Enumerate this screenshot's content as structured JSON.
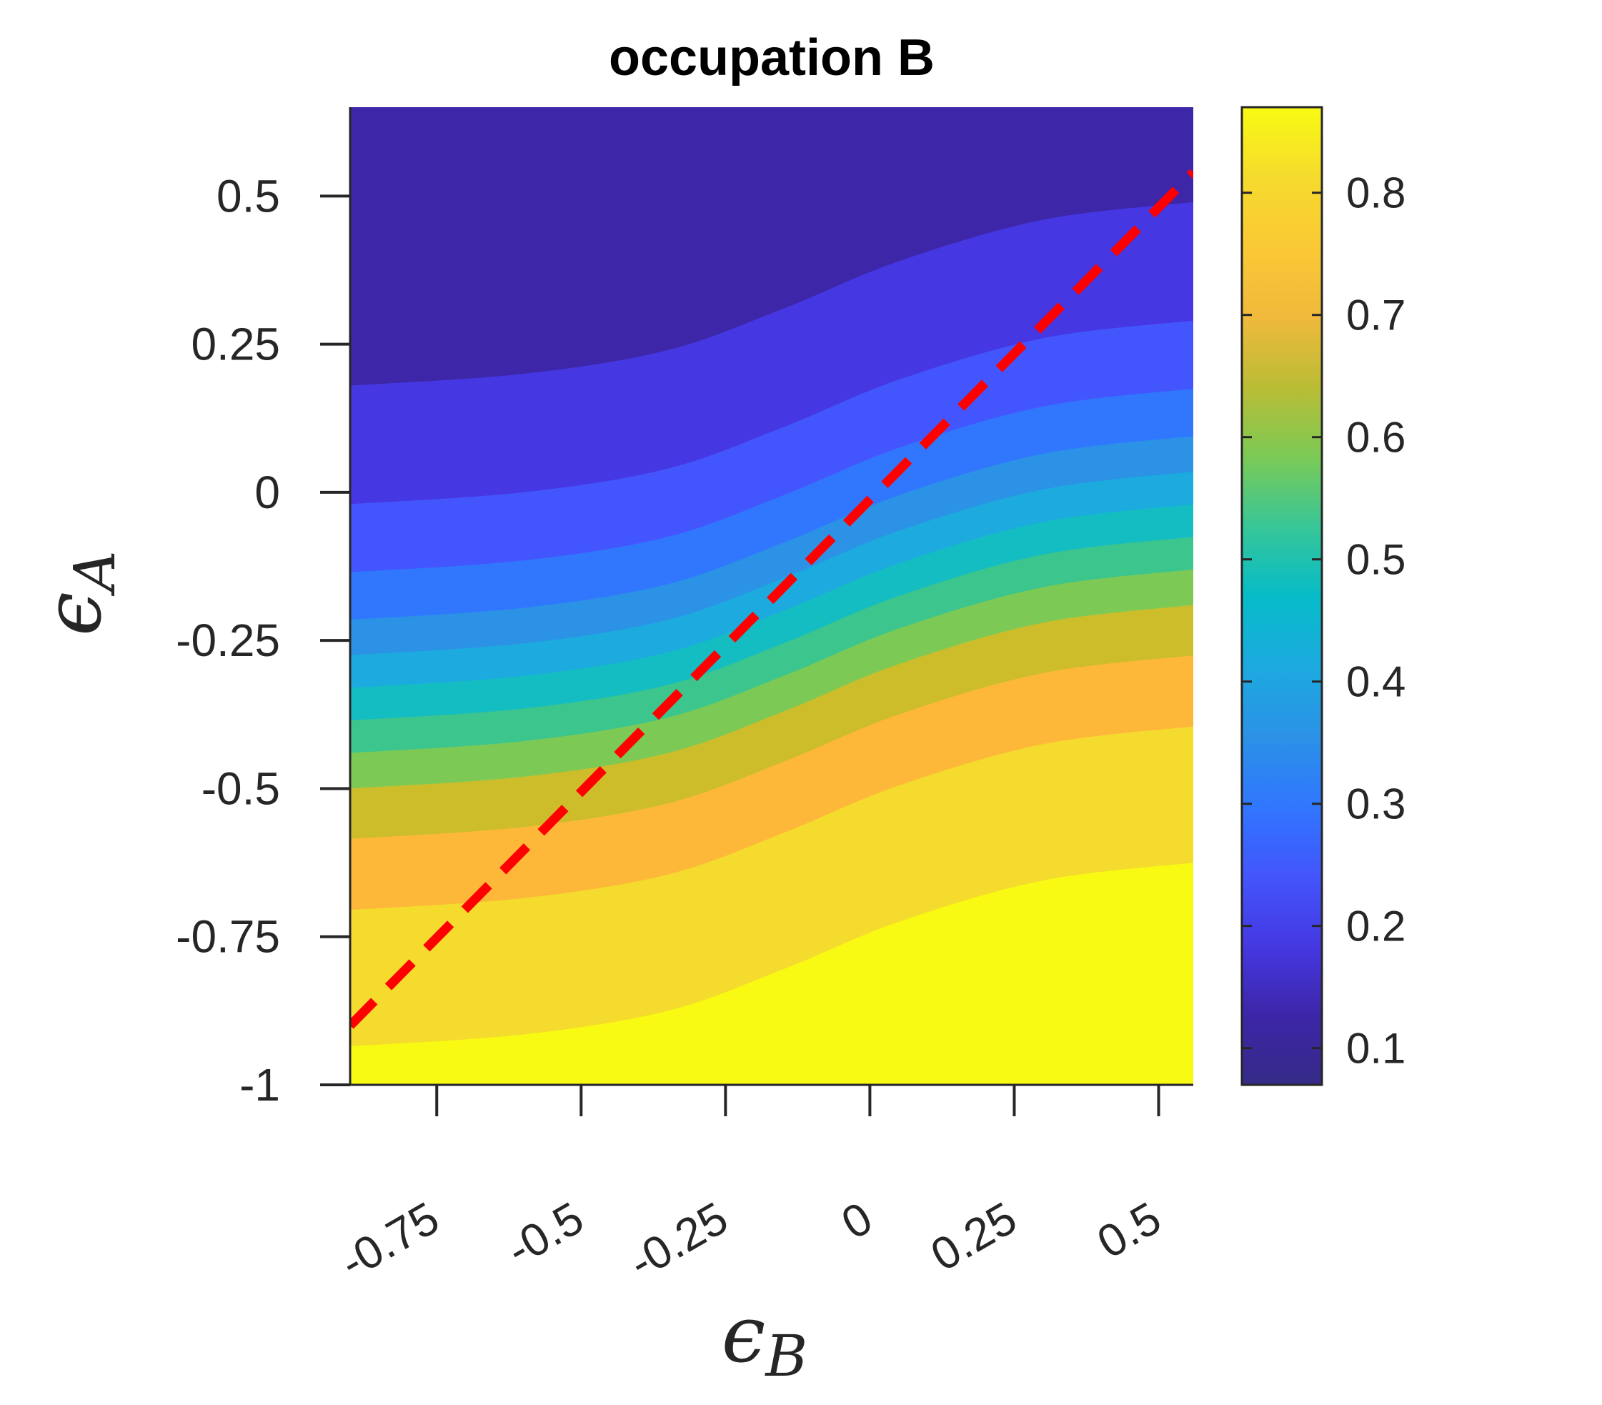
{
  "chart_data": {
    "type": "contourf",
    "title": "occupation B",
    "xlabel": {
      "symbol": "ϵ",
      "subscript": "B"
    },
    "ylabel": {
      "symbol": "ϵ",
      "subscript": "A"
    },
    "xlim": [
      -0.9,
      0.56
    ],
    "ylim": [
      -1.0,
      0.65
    ],
    "xticks": [
      -0.75,
      -0.5,
      -0.25,
      0,
      0.25,
      0.5
    ],
    "xtick_labels": [
      "-0.75",
      "-0.5",
      "-0.25",
      "0",
      "0.25",
      "0.5"
    ],
    "yticks": [
      -1,
      -0.75,
      -0.5,
      -0.25,
      0,
      0.25,
      0.5
    ],
    "ytick_labels": [
      "-1",
      "-0.75",
      "-0.5",
      "-0.25",
      "0",
      "0.25",
      "0.5"
    ],
    "colorbar": {
      "clim": [
        0.07,
        0.87
      ],
      "ticks": [
        0.1,
        0.2,
        0.3,
        0.4,
        0.5,
        0.6,
        0.7,
        0.8
      ],
      "tick_labels": [
        "0.1",
        "0.2",
        "0.3",
        "0.4",
        "0.5",
        "0.6",
        "0.7",
        "0.8"
      ],
      "colormap": "parula"
    },
    "contour_boundaries": [
      {
        "level": 0.15,
        "points": [
          [
            -0.9,
            0.18
          ],
          [
            -0.6,
            0.2
          ],
          [
            -0.35,
            0.24
          ],
          [
            -0.15,
            0.31
          ],
          [
            0.05,
            0.39
          ],
          [
            0.3,
            0.46
          ],
          [
            0.56,
            0.49
          ]
        ]
      },
      {
        "level": 0.2,
        "points": [
          [
            -0.9,
            -0.02
          ],
          [
            -0.6,
            0.0
          ],
          [
            -0.35,
            0.04
          ],
          [
            -0.15,
            0.11
          ],
          [
            0.05,
            0.19
          ],
          [
            0.3,
            0.26
          ],
          [
            0.56,
            0.29
          ]
        ]
      },
      {
        "level": 0.25,
        "points": [
          [
            -0.9,
            -0.135
          ],
          [
            -0.6,
            -0.115
          ],
          [
            -0.35,
            -0.075
          ],
          [
            -0.15,
            -0.005
          ],
          [
            0.05,
            0.075
          ],
          [
            0.3,
            0.145
          ],
          [
            0.56,
            0.175
          ]
        ]
      },
      {
        "level": 0.3,
        "points": [
          [
            -0.9,
            -0.215
          ],
          [
            -0.6,
            -0.195
          ],
          [
            -0.35,
            -0.155
          ],
          [
            -0.15,
            -0.085
          ],
          [
            0.05,
            -0.005
          ],
          [
            0.3,
            0.065
          ],
          [
            0.56,
            0.095
          ]
        ]
      },
      {
        "level": 0.35,
        "points": [
          [
            -0.9,
            -0.275
          ],
          [
            -0.6,
            -0.255
          ],
          [
            -0.35,
            -0.215
          ],
          [
            -0.15,
            -0.145
          ],
          [
            0.05,
            -0.065
          ],
          [
            0.3,
            0.005
          ],
          [
            0.56,
            0.035
          ]
        ]
      },
      {
        "level": 0.4,
        "points": [
          [
            -0.9,
            -0.33
          ],
          [
            -0.6,
            -0.31
          ],
          [
            -0.35,
            -0.27
          ],
          [
            -0.15,
            -0.2
          ],
          [
            0.05,
            -0.12
          ],
          [
            0.3,
            -0.05
          ],
          [
            0.56,
            -0.02
          ]
        ]
      },
      {
        "level": 0.45,
        "points": [
          [
            -0.9,
            -0.385
          ],
          [
            -0.6,
            -0.365
          ],
          [
            -0.35,
            -0.325
          ],
          [
            -0.15,
            -0.255
          ],
          [
            0.05,
            -0.175
          ],
          [
            0.3,
            -0.105
          ],
          [
            0.56,
            -0.075
          ]
        ]
      },
      {
        "level": 0.5,
        "points": [
          [
            -0.9,
            -0.44
          ],
          [
            -0.6,
            -0.42
          ],
          [
            -0.35,
            -0.38
          ],
          [
            -0.15,
            -0.31
          ],
          [
            0.05,
            -0.23
          ],
          [
            0.3,
            -0.16
          ],
          [
            0.56,
            -0.13
          ]
        ]
      },
      {
        "level": 0.55,
        "points": [
          [
            -0.9,
            -0.5
          ],
          [
            -0.6,
            -0.48
          ],
          [
            -0.35,
            -0.44
          ],
          [
            -0.15,
            -0.37
          ],
          [
            0.05,
            -0.29
          ],
          [
            0.3,
            -0.22
          ],
          [
            0.56,
            -0.19
          ]
        ]
      },
      {
        "level": 0.65,
        "points": [
          [
            -0.9,
            -0.585
          ],
          [
            -0.6,
            -0.565
          ],
          [
            -0.35,
            -0.525
          ],
          [
            -0.15,
            -0.455
          ],
          [
            0.05,
            -0.375
          ],
          [
            0.3,
            -0.305
          ],
          [
            0.56,
            -0.275
          ]
        ]
      },
      {
        "level": 0.75,
        "points": [
          [
            -0.9,
            -0.705
          ],
          [
            -0.6,
            -0.685
          ],
          [
            -0.35,
            -0.645
          ],
          [
            -0.15,
            -0.575
          ],
          [
            0.05,
            -0.495
          ],
          [
            0.3,
            -0.425
          ],
          [
            0.56,
            -0.395
          ]
        ]
      },
      {
        "level": 0.85,
        "points": [
          [
            -0.9,
            -0.935
          ],
          [
            -0.6,
            -0.915
          ],
          [
            -0.35,
            -0.875
          ],
          [
            -0.15,
            -0.805
          ],
          [
            0.05,
            -0.725
          ],
          [
            0.3,
            -0.655
          ],
          [
            0.56,
            -0.625
          ]
        ]
      }
    ],
    "band_colors": [
      "#3D26A8",
      "#4538E2",
      "#4356FD",
      "#3077FE",
      "#2B92E6",
      "#1CAADF",
      "#14BDC2",
      "#3CC58D",
      "#7CCA55",
      "#CDBD2B",
      "#FDB83A",
      "#F5DB2D",
      "#F8FA13"
    ],
    "reference_line": {
      "style": "dashed",
      "color": "#FF0000",
      "points": [
        [
          -0.9,
          -0.9
        ],
        [
          0.56,
          0.54
        ]
      ]
    }
  }
}
